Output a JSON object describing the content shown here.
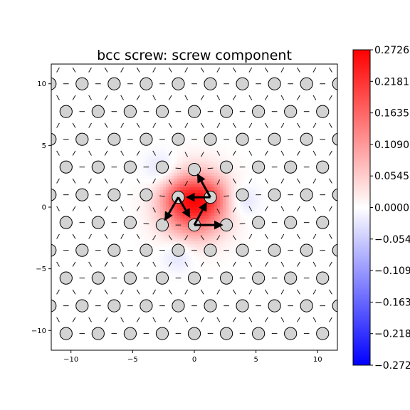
{
  "chart_data": {
    "type": "heatmap",
    "title": "bcc screw: screw component",
    "xlabel": "",
    "ylabel": "",
    "xlim": [
      -11.6,
      11.6
    ],
    "ylim": [
      -11.6,
      11.6
    ],
    "xticks": [
      "−10",
      "−5",
      "0",
      "5",
      "10"
    ],
    "yticks": [
      "−10",
      "−5",
      "0",
      "5",
      "10"
    ],
    "colorbar": {
      "colormap": "bwr",
      "range": [
        -0.2726,
        0.2726
      ],
      "ticks": [
        "−0.2726",
        "−0.2181",
        "−0.1635",
        "−0.1090",
        "−0.0545",
        "0.0000",
        "0.0545",
        "0.1090",
        "0.1635",
        "0.2181",
        "0.2726"
      ]
    },
    "atom_lattice": {
      "description": "triangular lattice of atoms",
      "row_spacing_y": 2.25,
      "col_spacing_x": 2.6,
      "odd_row_x_offset": 1.3,
      "row_y_values": [
        -10.25,
        -8.0,
        -5.75,
        -3.5,
        -1.25,
        1.0,
        3.25,
        5.5,
        7.75,
        10.0,
        12.25
      ]
    },
    "core_atoms": [
      {
        "x": -1.3,
        "y": 0.8
      },
      {
        "x": 1.3,
        "y": 0.8
      },
      {
        "x": -2.6,
        "y": -1.45
      },
      {
        "x": 0.0,
        "y": -1.45
      },
      {
        "x": 0.0,
        "y": 3.05
      },
      {
        "x": 2.6,
        "y": -1.45
      }
    ],
    "differential_displacement_arrows": [
      {
        "from": [
          0.0,
          -1.45
        ],
        "to": [
          2.2,
          -1.45
        ]
      },
      {
        "from": [
          1.3,
          0.8
        ],
        "to": [
          -0.55,
          0.8
        ]
      },
      {
        "from": [
          1.3,
          0.8
        ],
        "to": [
          0.3,
          2.6
        ]
      },
      {
        "from": [
          -1.3,
          0.8
        ],
        "to": [
          -2.35,
          -1.0
        ]
      },
      {
        "from": [
          -1.3,
          0.8
        ],
        "to": [
          -0.4,
          -0.75
        ]
      },
      {
        "from": [
          0.0,
          -1.45
        ],
        "to": [
          0.95,
          0.3
        ]
      }
    ],
    "field_lobes": [
      {
        "x": 0.0,
        "y": 0.2,
        "sigma": 1.8,
        "value": 0.23
      },
      {
        "x": -1.3,
        "y": 0.8,
        "sigma": 1.0,
        "value": 0.05
      },
      {
        "x": 1.3,
        "y": 0.8,
        "sigma": 1.0,
        "value": 0.05
      },
      {
        "x": -2.6,
        "y": 3.0,
        "sigma": 1.0,
        "value": -0.04
      },
      {
        "x": 3.9,
        "y": 0.5,
        "sigma": 0.9,
        "value": -0.04
      },
      {
        "x": -1.3,
        "y": -3.9,
        "sigma": 0.9,
        "value": -0.035
      }
    ]
  }
}
